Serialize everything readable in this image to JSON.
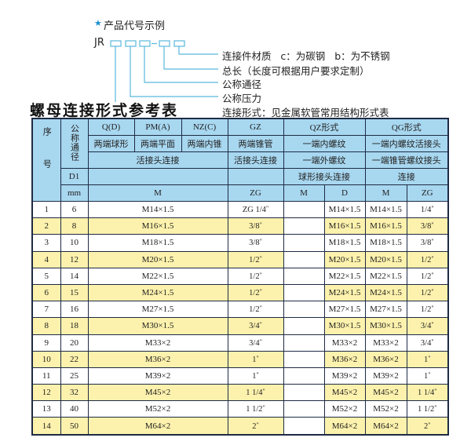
{
  "diagram": {
    "star_icon": "star-icon",
    "title": "产品代号示例",
    "code_prefix": "JR",
    "box_color": "#5ab8dc",
    "labels": [
      "连接件材质   c：为碳钢   b：为不锈钢",
      "总长（长度可根据用户要求定制）",
      "公称通径",
      "公称压力",
      "连接形式：见金属软管常用结构形式表"
    ]
  },
  "table_title": "螺母连接形式参考表",
  "colors": {
    "header_bg": "#a8d7f0",
    "alt_row_bg": "#fdf2ad",
    "border": "#1e2a44"
  },
  "header": {
    "seq": "序号",
    "dn": "公称通径",
    "r1": [
      "Q(D)",
      "PM(A)",
      "NZ(C)",
      "GZ",
      "QZ形式",
      "QG形式"
    ],
    "r2": [
      "两端球形",
      "两端平面",
      "两端内锥",
      "两端锥管",
      "一端内螺纹",
      "一端内螺纹活接头"
    ],
    "r3": [
      "活接头连接",
      "活接头连接",
      "一端外螺纹",
      "一端锥管螺纹接头"
    ],
    "r4": [
      "D1",
      "",
      "",
      "球形接头连接",
      "连接"
    ],
    "r5": [
      "mm",
      "M",
      "ZG",
      "M",
      "D",
      "M",
      "ZG"
    ]
  },
  "rows": [
    {
      "seq": "1",
      "dn": "6",
      "m": "M14×1.5",
      "zg": "ZG 1/4",
      "qz_m": "",
      "qz_d": "M14×1.5",
      "qg_m": "M14×1.5",
      "qg_zg": "1/4"
    },
    {
      "seq": "2",
      "dn": "8",
      "m": "M16×1.5",
      "zg": "3/8",
      "qz_m": "",
      "qz_d": "M16×1.5",
      "qg_m": "M16×1.5",
      "qg_zg": "3/8"
    },
    {
      "seq": "3",
      "dn": "10",
      "m": "M18×1.5",
      "zg": "3/8",
      "qz_m": "",
      "qz_d": "M18×1.5",
      "qg_m": "M18×1.5",
      "qg_zg": "3/8"
    },
    {
      "seq": "4",
      "dn": "12",
      "m": "M20×1.5",
      "zg": "1/2",
      "qz_m": "",
      "qz_d": "M20×1.5",
      "qg_m": "M20×1.5",
      "qg_zg": "1/2"
    },
    {
      "seq": "5",
      "dn": "14",
      "m": "M22×1.5",
      "zg": "1/2",
      "qz_m": "",
      "qz_d": "M22×1.5",
      "qg_m": "M22×1.5",
      "qg_zg": "1/2"
    },
    {
      "seq": "6",
      "dn": "15",
      "m": "M24×1.5",
      "zg": "1/2",
      "qz_m": "",
      "qz_d": "M24×1.5",
      "qg_m": "M24×1.5",
      "qg_zg": "1/2"
    },
    {
      "seq": "7",
      "dn": "16",
      "m": "M27×1.5",
      "zg": "1/2",
      "qz_m": "",
      "qz_d": "M27×1.5",
      "qg_m": "M27×1.5",
      "qg_zg": "1/2"
    },
    {
      "seq": "8",
      "dn": "18",
      "m": "M30×1.5",
      "zg": "3/4",
      "qz_m": "",
      "qz_d": "M30×1.5",
      "qg_m": "M30×1.5",
      "qg_zg": "3/4"
    },
    {
      "seq": "9",
      "dn": "20",
      "m": "M33×2",
      "zg": "3/4",
      "qz_m": "",
      "qz_d": "M33×2",
      "qg_m": "M33×2",
      "qg_zg": "3/4"
    },
    {
      "seq": "10",
      "dn": "22",
      "m": "M36×2",
      "zg": "1",
      "qz_m": "",
      "qz_d": "M36×2",
      "qg_m": "M36×2",
      "qg_zg": "1"
    },
    {
      "seq": "11",
      "dn": "25",
      "m": "M39×2",
      "zg": "1",
      "qz_m": "",
      "qz_d": "M39×2",
      "qg_m": "M39×2",
      "qg_zg": "1"
    },
    {
      "seq": "12",
      "dn": "32",
      "m": "M45×2",
      "zg": "1 1/4",
      "qz_m": "",
      "qz_d": "M45×2",
      "qg_m": "M45×2",
      "qg_zg": "1 1/4"
    },
    {
      "seq": "13",
      "dn": "40",
      "m": "M52×2",
      "zg": "1 1/2",
      "qz_m": "",
      "qz_d": "M52×2",
      "qg_m": "M52×2",
      "qg_zg": "1 1/2"
    },
    {
      "seq": "14",
      "dn": "50",
      "m": "M64×2",
      "zg": "2",
      "qz_m": "",
      "qz_d": "M64×2",
      "qg_m": "M64×2",
      "qg_zg": "2"
    }
  ],
  "inch_mark": "\""
}
